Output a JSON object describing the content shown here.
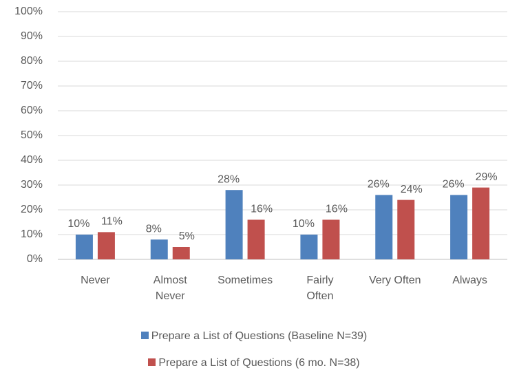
{
  "chart_data": {
    "type": "bar",
    "categories": [
      "Never",
      "Almost Never",
      "Sometimes",
      "Fairly Often",
      "Very Often",
      "Always"
    ],
    "series": [
      {
        "name": "Prepare a List of Questions (Baseline N=39)",
        "color": "#4f81bd",
        "values": [
          10,
          8,
          28,
          10,
          26,
          26
        ],
        "value_labels": [
          "10%",
          "8%",
          "28%",
          "10%",
          "26%",
          "26%"
        ]
      },
      {
        "name": "Prepare a List of Questions (6 mo. N=38)",
        "color": "#c0504d",
        "values": [
          11,
          5,
          16,
          16,
          24,
          29
        ],
        "value_labels": [
          "11%",
          "5%",
          "16%",
          "16%",
          "24%",
          "29%"
        ]
      }
    ],
    "ylim": [
      0,
      100
    ],
    "yticks": [
      {
        "value": 0,
        "label": "0%"
      },
      {
        "value": 10,
        "label": "10%"
      },
      {
        "value": 20,
        "label": "20%"
      },
      {
        "value": 30,
        "label": "30%"
      },
      {
        "value": 40,
        "label": "40%"
      },
      {
        "value": 50,
        "label": "50%"
      },
      {
        "value": 60,
        "label": "60%"
      },
      {
        "value": 70,
        "label": "70%"
      },
      {
        "value": 80,
        "label": "80%"
      },
      {
        "value": 90,
        "label": "90%"
      },
      {
        "value": 100,
        "label": "100%"
      }
    ],
    "grid": true,
    "legend": "bottom"
  }
}
